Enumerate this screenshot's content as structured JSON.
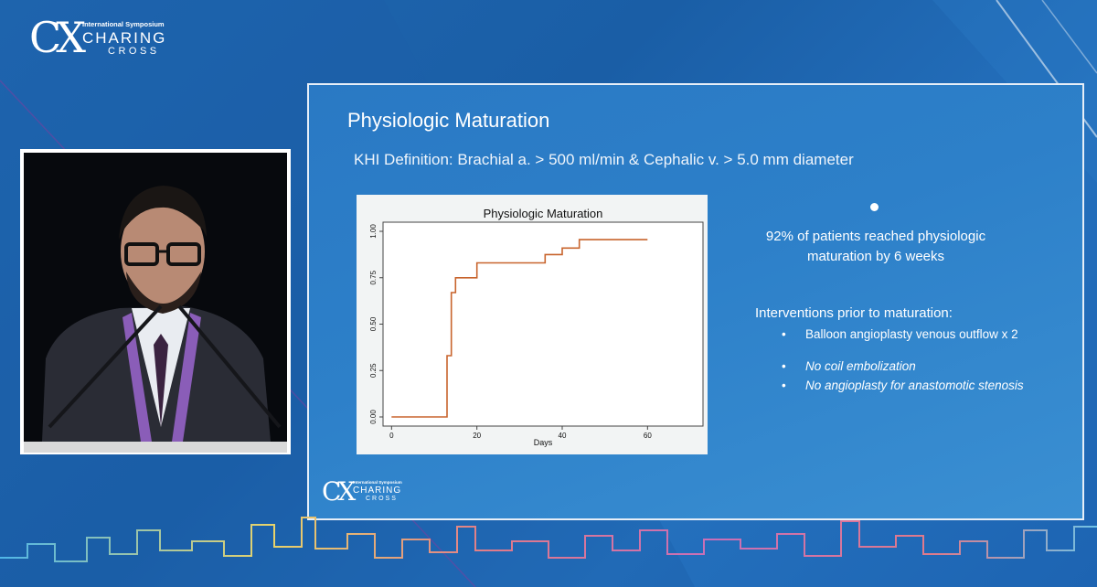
{
  "brand": {
    "symposium": "International Symposium",
    "name": "CHARING",
    "sub": "CROSS",
    "monogram": "CX"
  },
  "slide": {
    "title": "Physiologic Maturation",
    "definition": "KHI Definition: Brachial a. > 500 ml/min & Cephalic v. > 5.0 mm diameter",
    "stat_line1": "92% of patients reached physiologic",
    "stat_line2": "maturation by 6 weeks",
    "interventions_heading": "Interventions prior to maturation:",
    "interventions": [
      "Balloon angioplasty venous outflow x 2",
      "No coil embolization",
      "No angioplasty for anastomotic stenosis"
    ],
    "bullet_glyph": "•"
  },
  "chart_data": {
    "type": "line",
    "title": "Physiologic Maturation",
    "xlabel": "Days",
    "ylabel": "",
    "xlim": [
      -2,
      73
    ],
    "ylim": [
      0,
      1
    ],
    "xticks": [
      0,
      20,
      40,
      60
    ],
    "yticks": [
      "0.00",
      "0.25",
      "0.50",
      "0.75",
      "1.00"
    ],
    "step": true,
    "line_color": "#c8642d",
    "series": [
      {
        "x": [
          0,
          13,
          13,
          14,
          14,
          15,
          15,
          20,
          20,
          36,
          36,
          40,
          40,
          44,
          44,
          60
        ],
        "y": [
          0,
          0,
          0.33,
          0.33,
          0.67,
          0.67,
          0.75,
          0.75,
          0.83,
          0.83,
          0.875,
          0.875,
          0.91,
          0.91,
          0.955,
          0.955
        ]
      }
    ]
  },
  "colors": {
    "background": "#1f67b0",
    "slide_bg": "#2d80c9",
    "chart_bg": "#f2f4f4",
    "plot_bg": "#ffffff"
  }
}
